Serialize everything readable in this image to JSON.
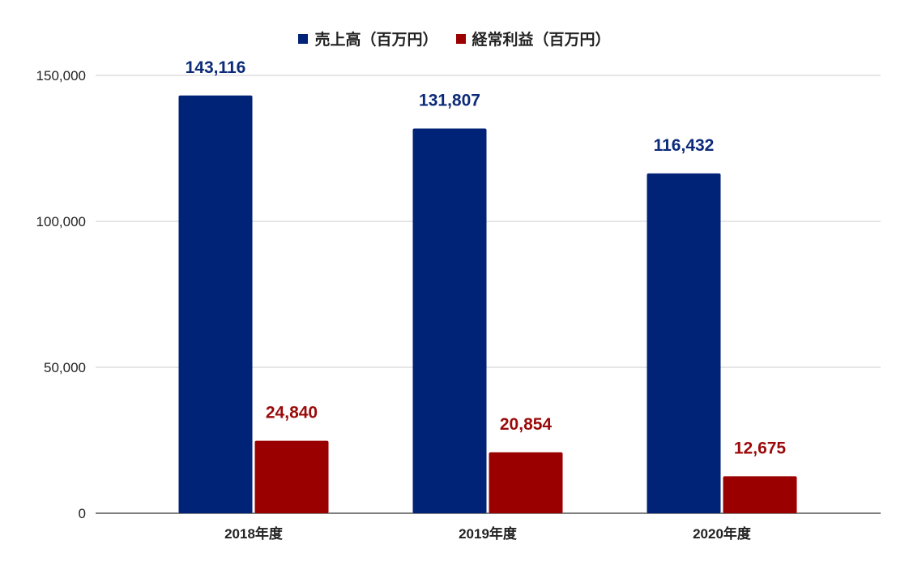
{
  "chart_data": {
    "type": "bar",
    "categories": [
      "2018年度",
      "2019年度",
      "2020年度"
    ],
    "series": [
      {
        "name": "売上高（百万円）",
        "color": "#002277",
        "label_color": "#0c2a78",
        "values": [
          143116,
          131807,
          116432
        ],
        "value_labels": [
          "143,116",
          "131,807",
          "116,432"
        ]
      },
      {
        "name": "経常利益（百万円）",
        "color": "#9b0000",
        "label_color": "#9b0a0a",
        "values": [
          24840,
          20854,
          12675
        ],
        "value_labels": [
          "24,840",
          "20,854",
          "12,675"
        ]
      }
    ],
    "y_ticks": [
      0,
      50000,
      100000,
      150000
    ],
    "y_tick_labels": [
      "0",
      "50,000",
      "100,000",
      "150,000"
    ],
    "ylim": [
      0,
      150000
    ],
    "grid": true,
    "legend_position": "top-center"
  }
}
